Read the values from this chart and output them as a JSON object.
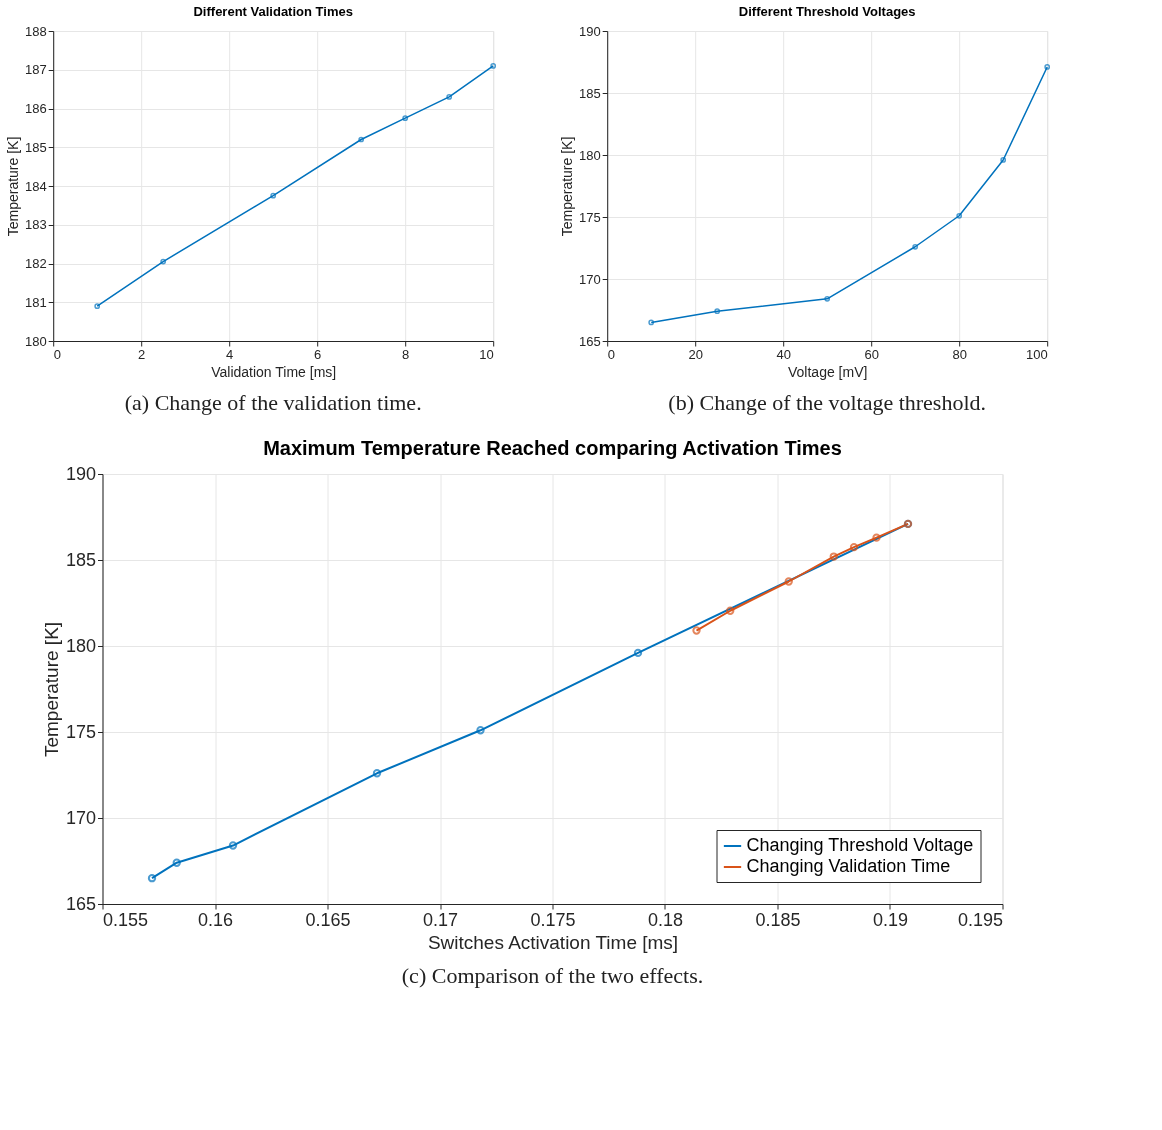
{
  "chart_data": [
    {
      "type": "line",
      "title": "Different Validation Times",
      "xlabel": "Validation Time [ms]",
      "ylabel": "Temperature [K]",
      "series": [
        {
          "color": "#0072bd",
          "x": [
            1,
            2.5,
            5,
            7,
            8,
            9,
            10
          ],
          "values": [
            180.9,
            182.05,
            183.75,
            185.2,
            185.75,
            186.3,
            187.1
          ]
        }
      ],
      "xlim": [
        0,
        10
      ],
      "xticks": [
        0,
        2,
        4,
        6,
        8,
        10
      ],
      "ylim": [
        180,
        188
      ],
      "yticks": [
        180,
        181,
        182,
        183,
        184,
        185,
        186,
        187,
        188
      ],
      "grid": true,
      "marker": "circle",
      "legend": false,
      "annotations": [
        "(a) Change of the validation time."
      ]
    },
    {
      "type": "line",
      "title": "Different Threshold Voltages",
      "xlabel": "Voltage [mV]",
      "ylabel": "Temperature [K]",
      "series": [
        {
          "color": "#0072bd",
          "x": [
            10,
            25,
            50,
            70,
            80,
            90,
            100
          ],
          "values": [
            166.5,
            167.4,
            168.4,
            172.6,
            175.1,
            179.6,
            187.1
          ]
        }
      ],
      "xlim": [
        0,
        100
      ],
      "xticks": [
        0,
        20,
        40,
        60,
        80,
        100
      ],
      "ylim": [
        165,
        190
      ],
      "yticks": [
        165,
        170,
        175,
        180,
        185,
        190
      ],
      "grid": true,
      "marker": "circle",
      "legend": false,
      "annotations": [
        "(b) Change of the voltage threshold."
      ]
    },
    {
      "type": "line",
      "title": "Maximum Temperature Reached comparing Activation Times",
      "xlabel": "Switches Activation Time [ms]",
      "ylabel": "Temperature [K]",
      "series": [
        {
          "name": "Changing Threshold Voltage",
          "color": "#0072bd",
          "x": [
            0.1572,
            0.1583,
            0.1608,
            0.1672,
            0.1718,
            0.1788,
            0.1908
          ],
          "values": [
            166.5,
            167.4,
            168.4,
            172.6,
            175.1,
            179.6,
            187.1
          ]
        },
        {
          "name": "Changing Validation Time",
          "color": "#d95319",
          "x": [
            0.1814,
            0.1829,
            0.1855,
            0.1875,
            0.1884,
            0.1894,
            0.1908
          ],
          "values": [
            180.9,
            182.05,
            183.75,
            185.2,
            185.75,
            186.3,
            187.1
          ]
        }
      ],
      "xlim": [
        0.155,
        0.195
      ],
      "xticks": [
        0.155,
        0.16,
        0.165,
        0.17,
        0.175,
        0.18,
        0.185,
        0.19,
        0.195
      ],
      "ylim": [
        165,
        190
      ],
      "yticks": [
        165,
        170,
        175,
        180,
        185,
        190
      ],
      "grid": true,
      "marker": "circle",
      "legend": "bottom right",
      "annotations": [
        "(c) Comparison of the two effects."
      ]
    }
  ]
}
